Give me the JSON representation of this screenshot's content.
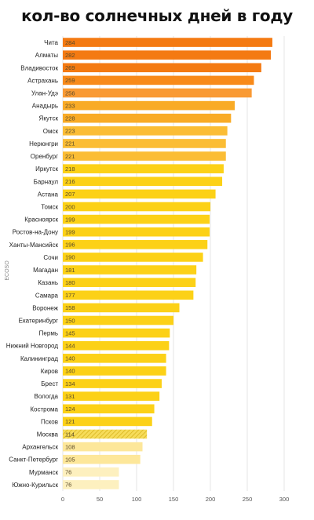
{
  "title": "кол-во солнечных дней в году",
  "source_label": "ECOSO",
  "colors": {
    "top": "#f47a12",
    "mid": "#f9a423",
    "upper": "#fbc53a",
    "yellow": "#fcd117",
    "light": "#fde79a",
    "lightest": "#fdf0bf",
    "highlight_hatch": "#f0d02c"
  },
  "chart_data": {
    "type": "bar",
    "orientation": "horizontal",
    "title": "кол-во солнечных дней в году",
    "categories": [
      "Чита",
      "Алматы",
      "Владивосток",
      "Астрахань",
      "Улан-Удэ",
      "Анадырь",
      "Якутск",
      "Омск",
      "Нерюнгри",
      "Оренбург",
      "Иркутск",
      "Барнаул",
      "Астана",
      "Томск",
      "Красноярск",
      "Ростов-на-Дону",
      "Ханты-Мансийск",
      "Сочи",
      "Магадан",
      "Казань",
      "Самара",
      "Воронеж",
      "Екатеринбург",
      "Пермь",
      "Нижний Новгород",
      "Калининград",
      "Киров",
      "Брест",
      "Вологда",
      "Кострома",
      "Псков",
      "Москва",
      "Архангельск",
      "Санкт-Петербург",
      "Мурманск",
      "Южно-Курильск"
    ],
    "values": [
      284,
      282,
      269,
      259,
      256,
      233,
      228,
      223,
      221,
      221,
      218,
      216,
      207,
      200,
      199,
      199,
      196,
      190,
      181,
      180,
      177,
      158,
      150,
      145,
      144,
      140,
      140,
      134,
      131,
      124,
      121,
      114,
      108,
      105,
      76,
      76
    ],
    "highlight": "Москва",
    "xlim": [
      0,
      300
    ],
    "xticks": [
      0,
      50,
      100,
      150,
      200,
      250,
      300
    ],
    "grid": true
  }
}
